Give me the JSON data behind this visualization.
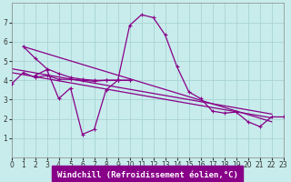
{
  "bg_color": "#c8ecec",
  "grid_color": "#a8d4d4",
  "line_color": "#880088",
  "xlim": [
    0,
    23
  ],
  "ylim": [
    0,
    8
  ],
  "xtick_vals": [
    0,
    1,
    2,
    3,
    4,
    5,
    6,
    7,
    8,
    9,
    10,
    11,
    12,
    13,
    14,
    15,
    16,
    17,
    18,
    19,
    20,
    21,
    22,
    23
  ],
  "ytick_vals": [
    1,
    2,
    3,
    4,
    5,
    6,
    7
  ],
  "xlabel": "Windchill (Refroidissement éolien,°C)",
  "xlabel_bg": "#880088",
  "curve_main_x": [
    0,
    1,
    2,
    3,
    4,
    5,
    6,
    7,
    8,
    9,
    10,
    11,
    12,
    13,
    14,
    15,
    16,
    17,
    18,
    19,
    20,
    21,
    22,
    23
  ],
  "curve_main_y": [
    3.8,
    4.4,
    4.15,
    4.25,
    4.05,
    4.05,
    4.0,
    3.95,
    4.0,
    4.0,
    6.85,
    7.4,
    7.25,
    6.35,
    4.7,
    3.4,
    3.05,
    2.4,
    2.3,
    2.35,
    1.85,
    1.6,
    2.1,
    2.1
  ],
  "curve_seg1_x": [
    1,
    2,
    3,
    4,
    5,
    6,
    7,
    8,
    9,
    10
  ],
  "curve_seg1_y": [
    5.75,
    5.15,
    4.6,
    4.35,
    4.15,
    4.05,
    4.0,
    4.0,
    4.0,
    4.0
  ],
  "curve_seg2_x": [
    2,
    3,
    4,
    5,
    6,
    7,
    8,
    9,
    10
  ],
  "curve_seg2_y": [
    4.25,
    4.55,
    3.05,
    3.6,
    1.2,
    1.45,
    3.5,
    4.0,
    4.0
  ],
  "line1_x": [
    1,
    22
  ],
  "line1_y": [
    5.75,
    1.85
  ],
  "line2_x": [
    0,
    22
  ],
  "line2_y": [
    4.4,
    2.05
  ],
  "line3_x": [
    0,
    22
  ],
  "line3_y": [
    4.6,
    2.25
  ],
  "tick_fontsize": 5.5,
  "xlabel_fontsize": 6.5,
  "lw": 0.9,
  "ms": 2.5
}
